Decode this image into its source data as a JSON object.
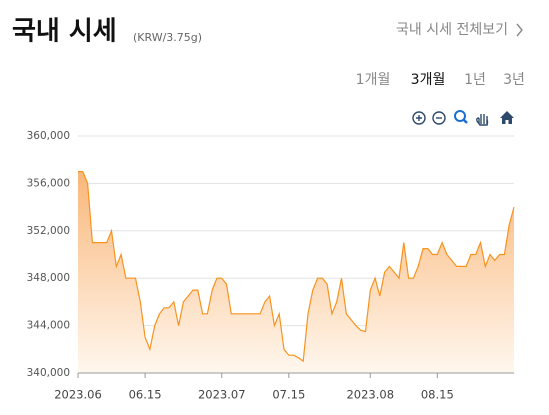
{
  "chart_data": {
    "type": "area",
    "title": "국내 시세",
    "subtitle": "(KRW/3.75g)",
    "x": [
      "2023-06-01",
      "2023-06-02",
      "2023-06-03",
      "2023-06-04",
      "2023-06-05",
      "2023-06-06",
      "2023-06-07",
      "2023-06-08",
      "2023-06-09",
      "2023-06-10",
      "2023-06-11",
      "2023-06-12",
      "2023-06-13",
      "2023-06-14",
      "2023-06-15",
      "2023-06-16",
      "2023-06-17",
      "2023-06-18",
      "2023-06-19",
      "2023-06-20",
      "2023-06-21",
      "2023-06-22",
      "2023-06-23",
      "2023-06-24",
      "2023-06-25",
      "2023-06-26",
      "2023-06-27",
      "2023-06-28",
      "2023-06-29",
      "2023-06-30",
      "2023-07-01",
      "2023-07-02",
      "2023-07-03",
      "2023-07-04",
      "2023-07-05",
      "2023-07-06",
      "2023-07-07",
      "2023-07-08",
      "2023-07-09",
      "2023-07-10",
      "2023-07-11",
      "2023-07-12",
      "2023-07-13",
      "2023-07-14",
      "2023-07-15",
      "2023-07-16",
      "2023-07-17",
      "2023-07-18",
      "2023-07-19",
      "2023-07-20",
      "2023-07-21",
      "2023-07-22",
      "2023-07-23",
      "2023-07-24",
      "2023-07-25",
      "2023-07-26",
      "2023-07-27",
      "2023-07-28",
      "2023-07-29",
      "2023-07-30",
      "2023-07-31",
      "2023-08-01",
      "2023-08-02",
      "2023-08-03",
      "2023-08-04",
      "2023-08-05",
      "2023-08-06",
      "2023-08-07",
      "2023-08-08",
      "2023-08-09",
      "2023-08-10",
      "2023-08-11",
      "2023-08-12",
      "2023-08-13",
      "2023-08-14",
      "2023-08-15",
      "2023-08-16",
      "2023-08-17",
      "2023-08-18",
      "2023-08-19",
      "2023-08-20",
      "2023-08-21",
      "2023-08-22",
      "2023-08-23",
      "2023-08-24",
      "2023-08-25",
      "2023-08-26",
      "2023-08-27",
      "2023-08-28",
      "2023-08-29",
      "2023-08-30",
      "2023-08-31"
    ],
    "series": [
      {
        "color": "#f7931e",
        "values": [
          357000,
          357000,
          356000,
          351000,
          351000,
          351000,
          351000,
          352000,
          349000,
          350000,
          348000,
          348000,
          348000,
          346000,
          343000,
          342000,
          344000,
          345000,
          345500,
          345500,
          346000,
          344000,
          346000,
          346500,
          347000,
          347000,
          345000,
          345000,
          347000,
          348000,
          348000,
          347500,
          345000,
          345000,
          345000,
          345000,
          345000,
          345000,
          345000,
          346000,
          346500,
          344000,
          345000,
          342000,
          341500,
          341500,
          341300,
          341000,
          345000,
          347000,
          348000,
          348000,
          347500,
          345000,
          346000,
          348000,
          345000,
          344500,
          344000,
          343600,
          343500,
          347000,
          348000,
          346500,
          348500,
          349000,
          348500,
          348000,
          351000,
          348000,
          348000,
          349000,
          350500,
          350500,
          350000,
          350000,
          351000,
          350000,
          349500,
          349000,
          349000,
          349000,
          350000,
          350000,
          351000,
          349000,
          350000,
          349500,
          350000,
          350000,
          352500,
          354000
        ]
      }
    ],
    "xlim": [
      "2023-06-01",
      "2023-08-31"
    ],
    "xticks": [
      {
        "value": "2023-06-01",
        "label": "2023.06"
      },
      {
        "value": "2023-06-15",
        "label": "06.15"
      },
      {
        "value": "2023-07-01",
        "label": "2023.07"
      },
      {
        "value": "2023-07-15",
        "label": "07.15"
      },
      {
        "value": "2023-08-01",
        "label": "2023.08"
      },
      {
        "value": "2023-08-15",
        "label": "08.15"
      }
    ],
    "ylim": [
      340000,
      360000
    ],
    "yticks": [
      {
        "value": 340000,
        "label": "340,000"
      },
      {
        "value": 344000,
        "label": "344,000"
      },
      {
        "value": 348000,
        "label": "348,000"
      },
      {
        "value": 352000,
        "label": "352,000"
      },
      {
        "value": 356000,
        "label": "356,000"
      },
      {
        "value": 360000,
        "label": "360,000"
      }
    ],
    "grid": true
  },
  "link": "국내 시세 전체보기",
  "tabs": [
    "1개월",
    "3개월",
    "1년",
    "3년"
  ]
}
